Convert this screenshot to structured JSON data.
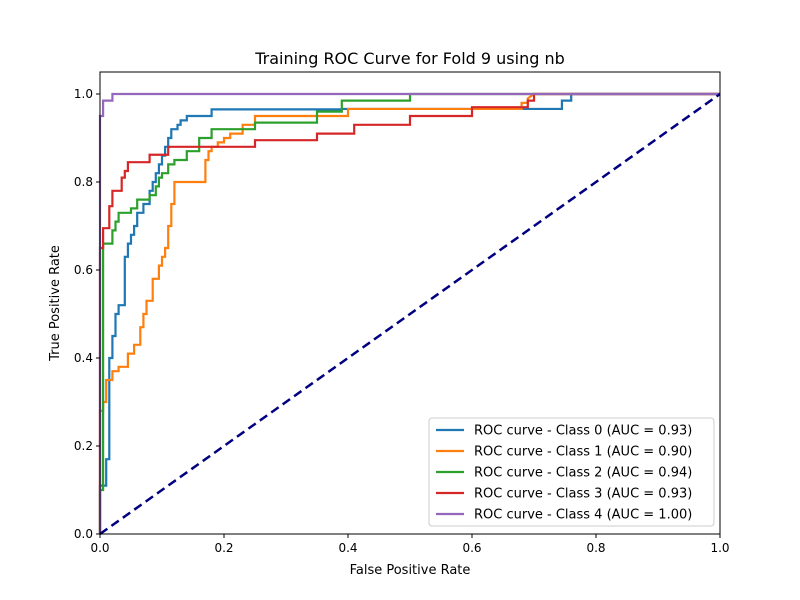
{
  "chart_data": {
    "type": "line",
    "title": "Training ROC Curve for Fold 9 using nb",
    "xlabel": "False Positive Rate",
    "ylabel": "True Positive Rate",
    "xlim": [
      0.0,
      1.0
    ],
    "ylim": [
      0.0,
      1.05
    ],
    "x_ticks": [
      0.0,
      0.2,
      0.4,
      0.6,
      0.8,
      1.0
    ],
    "y_ticks": [
      0.0,
      0.2,
      0.4,
      0.6,
      0.8,
      1.0
    ],
    "x_tick_labels": [
      "0.0",
      "0.2",
      "0.4",
      "0.6",
      "0.8",
      "1.0"
    ],
    "y_tick_labels": [
      "0.0",
      "0.2",
      "0.4",
      "0.6",
      "0.8",
      "1.0"
    ],
    "grid": false,
    "legend_position": "lower-right",
    "diagonal": {
      "color": "#000080",
      "style": "dashed",
      "points": [
        [
          0,
          0
        ],
        [
          1,
          1
        ]
      ]
    },
    "series": [
      {
        "name": "ROC curve - Class 0 (AUC = 0.93)",
        "color": "#1f77b4",
        "points": [
          [
            0,
            0
          ],
          [
            0,
            0.07
          ],
          [
            0,
            0.11
          ],
          [
            0.01,
            0.11
          ],
          [
            0.01,
            0.17
          ],
          [
            0.015,
            0.17
          ],
          [
            0.015,
            0.4
          ],
          [
            0.02,
            0.4
          ],
          [
            0.02,
            0.45
          ],
          [
            0.025,
            0.45
          ],
          [
            0.025,
            0.5
          ],
          [
            0.03,
            0.5
          ],
          [
            0.03,
            0.52
          ],
          [
            0.04,
            0.52
          ],
          [
            0.04,
            0.63
          ],
          [
            0.045,
            0.63
          ],
          [
            0.045,
            0.66
          ],
          [
            0.05,
            0.66
          ],
          [
            0.05,
            0.68
          ],
          [
            0.055,
            0.68
          ],
          [
            0.055,
            0.7
          ],
          [
            0.06,
            0.7
          ],
          [
            0.06,
            0.73
          ],
          [
            0.07,
            0.73
          ],
          [
            0.07,
            0.75
          ],
          [
            0.08,
            0.75
          ],
          [
            0.08,
            0.78
          ],
          [
            0.085,
            0.78
          ],
          [
            0.085,
            0.8
          ],
          [
            0.09,
            0.8
          ],
          [
            0.09,
            0.82
          ],
          [
            0.095,
            0.82
          ],
          [
            0.095,
            0.84
          ],
          [
            0.1,
            0.84
          ],
          [
            0.1,
            0.86
          ],
          [
            0.105,
            0.86
          ],
          [
            0.105,
            0.88
          ],
          [
            0.11,
            0.88
          ],
          [
            0.11,
            0.9
          ],
          [
            0.115,
            0.9
          ],
          [
            0.115,
            0.92
          ],
          [
            0.125,
            0.92
          ],
          [
            0.125,
            0.93
          ],
          [
            0.13,
            0.93
          ],
          [
            0.13,
            0.94
          ],
          [
            0.14,
            0.94
          ],
          [
            0.14,
            0.95
          ],
          [
            0.18,
            0.95
          ],
          [
            0.18,
            0.965
          ],
          [
            0.39,
            0.965
          ],
          [
            0.39,
            0.966
          ],
          [
            0.745,
            0.966
          ],
          [
            0.745,
            0.985
          ],
          [
            0.76,
            0.985
          ],
          [
            0.76,
            1.0
          ],
          [
            1.0,
            1.0
          ]
        ]
      },
      {
        "name": "ROC curve - Class 1 (AUC = 0.90)",
        "color": "#ff7f0e",
        "points": [
          [
            0,
            0
          ],
          [
            0,
            0.28
          ],
          [
            0.005,
            0.28
          ],
          [
            0.005,
            0.3
          ],
          [
            0.01,
            0.3
          ],
          [
            0.01,
            0.35
          ],
          [
            0.02,
            0.35
          ],
          [
            0.02,
            0.37
          ],
          [
            0.03,
            0.37
          ],
          [
            0.03,
            0.38
          ],
          [
            0.045,
            0.38
          ],
          [
            0.045,
            0.41
          ],
          [
            0.055,
            0.41
          ],
          [
            0.055,
            0.43
          ],
          [
            0.065,
            0.43
          ],
          [
            0.065,
            0.47
          ],
          [
            0.07,
            0.47
          ],
          [
            0.07,
            0.5
          ],
          [
            0.075,
            0.5
          ],
          [
            0.075,
            0.53
          ],
          [
            0.085,
            0.53
          ],
          [
            0.085,
            0.58
          ],
          [
            0.095,
            0.58
          ],
          [
            0.095,
            0.61
          ],
          [
            0.1,
            0.61
          ],
          [
            0.1,
            0.63
          ],
          [
            0.105,
            0.63
          ],
          [
            0.105,
            0.65
          ],
          [
            0.11,
            0.65
          ],
          [
            0.11,
            0.7
          ],
          [
            0.115,
            0.7
          ],
          [
            0.115,
            0.75
          ],
          [
            0.12,
            0.75
          ],
          [
            0.12,
            0.8
          ],
          [
            0.17,
            0.8
          ],
          [
            0.17,
            0.85
          ],
          [
            0.175,
            0.85
          ],
          [
            0.175,
            0.87
          ],
          [
            0.18,
            0.87
          ],
          [
            0.18,
            0.88
          ],
          [
            0.19,
            0.88
          ],
          [
            0.19,
            0.89
          ],
          [
            0.2,
            0.89
          ],
          [
            0.2,
            0.9
          ],
          [
            0.21,
            0.9
          ],
          [
            0.21,
            0.91
          ],
          [
            0.23,
            0.91
          ],
          [
            0.23,
            0.93
          ],
          [
            0.25,
            0.93
          ],
          [
            0.25,
            0.95
          ],
          [
            0.4,
            0.95
          ],
          [
            0.4,
            0.966
          ],
          [
            0.68,
            0.966
          ],
          [
            0.68,
            0.98
          ],
          [
            0.69,
            0.98
          ],
          [
            0.69,
            0.99
          ],
          [
            0.7,
            1.0
          ],
          [
            1.0,
            1.0
          ]
        ]
      },
      {
        "name": "ROC curve - Class 2 (AUC = 0.94)",
        "color": "#2ca02c",
        "points": [
          [
            0,
            0
          ],
          [
            0,
            0.1
          ],
          [
            0.005,
            0.1
          ],
          [
            0.005,
            0.66
          ],
          [
            0.02,
            0.66
          ],
          [
            0.02,
            0.69
          ],
          [
            0.025,
            0.69
          ],
          [
            0.025,
            0.71
          ],
          [
            0.03,
            0.71
          ],
          [
            0.03,
            0.73
          ],
          [
            0.05,
            0.73
          ],
          [
            0.05,
            0.74
          ],
          [
            0.06,
            0.74
          ],
          [
            0.06,
            0.76
          ],
          [
            0.08,
            0.76
          ],
          [
            0.08,
            0.77
          ],
          [
            0.09,
            0.77
          ],
          [
            0.09,
            0.79
          ],
          [
            0.095,
            0.79
          ],
          [
            0.095,
            0.81
          ],
          [
            0.1,
            0.81
          ],
          [
            0.1,
            0.82
          ],
          [
            0.11,
            0.82
          ],
          [
            0.11,
            0.84
          ],
          [
            0.12,
            0.84
          ],
          [
            0.12,
            0.85
          ],
          [
            0.14,
            0.85
          ],
          [
            0.14,
            0.87
          ],
          [
            0.16,
            0.87
          ],
          [
            0.16,
            0.9
          ],
          [
            0.18,
            0.9
          ],
          [
            0.18,
            0.92
          ],
          [
            0.25,
            0.92
          ],
          [
            0.25,
            0.935
          ],
          [
            0.35,
            0.935
          ],
          [
            0.35,
            0.96
          ],
          [
            0.39,
            0.96
          ],
          [
            0.39,
            0.985
          ],
          [
            0.5,
            0.985
          ],
          [
            0.5,
            1.0
          ],
          [
            1.0,
            1.0
          ]
        ]
      },
      {
        "name": "ROC curve - Class 3 (AUC = 0.93)",
        "color": "#d62728",
        "points": [
          [
            0,
            0
          ],
          [
            0,
            0.65
          ],
          [
            0.005,
            0.65
          ],
          [
            0.005,
            0.695
          ],
          [
            0.015,
            0.695
          ],
          [
            0.015,
            0.745
          ],
          [
            0.02,
            0.745
          ],
          [
            0.02,
            0.78
          ],
          [
            0.035,
            0.78
          ],
          [
            0.035,
            0.81
          ],
          [
            0.04,
            0.81
          ],
          [
            0.04,
            0.825
          ],
          [
            0.045,
            0.825
          ],
          [
            0.045,
            0.845
          ],
          [
            0.08,
            0.845
          ],
          [
            0.08,
            0.862
          ],
          [
            0.11,
            0.862
          ],
          [
            0.11,
            0.88
          ],
          [
            0.25,
            0.88
          ],
          [
            0.25,
            0.895
          ],
          [
            0.35,
            0.895
          ],
          [
            0.35,
            0.91
          ],
          [
            0.41,
            0.91
          ],
          [
            0.41,
            0.93
          ],
          [
            0.5,
            0.93
          ],
          [
            0.5,
            0.95
          ],
          [
            0.6,
            0.95
          ],
          [
            0.6,
            0.97
          ],
          [
            0.69,
            0.97
          ],
          [
            0.69,
            0.985
          ],
          [
            0.7,
            0.985
          ],
          [
            0.7,
            1.0
          ],
          [
            1.0,
            1.0
          ]
        ]
      },
      {
        "name": "ROC curve - Class 4 (AUC = 1.00)",
        "color": "#9467bd",
        "points": [
          [
            0,
            0
          ],
          [
            0,
            0.95
          ],
          [
            0.005,
            0.95
          ],
          [
            0.005,
            0.985
          ],
          [
            0.02,
            0.985
          ],
          [
            0.02,
            1.0
          ],
          [
            1.0,
            1.0
          ]
        ]
      }
    ]
  }
}
